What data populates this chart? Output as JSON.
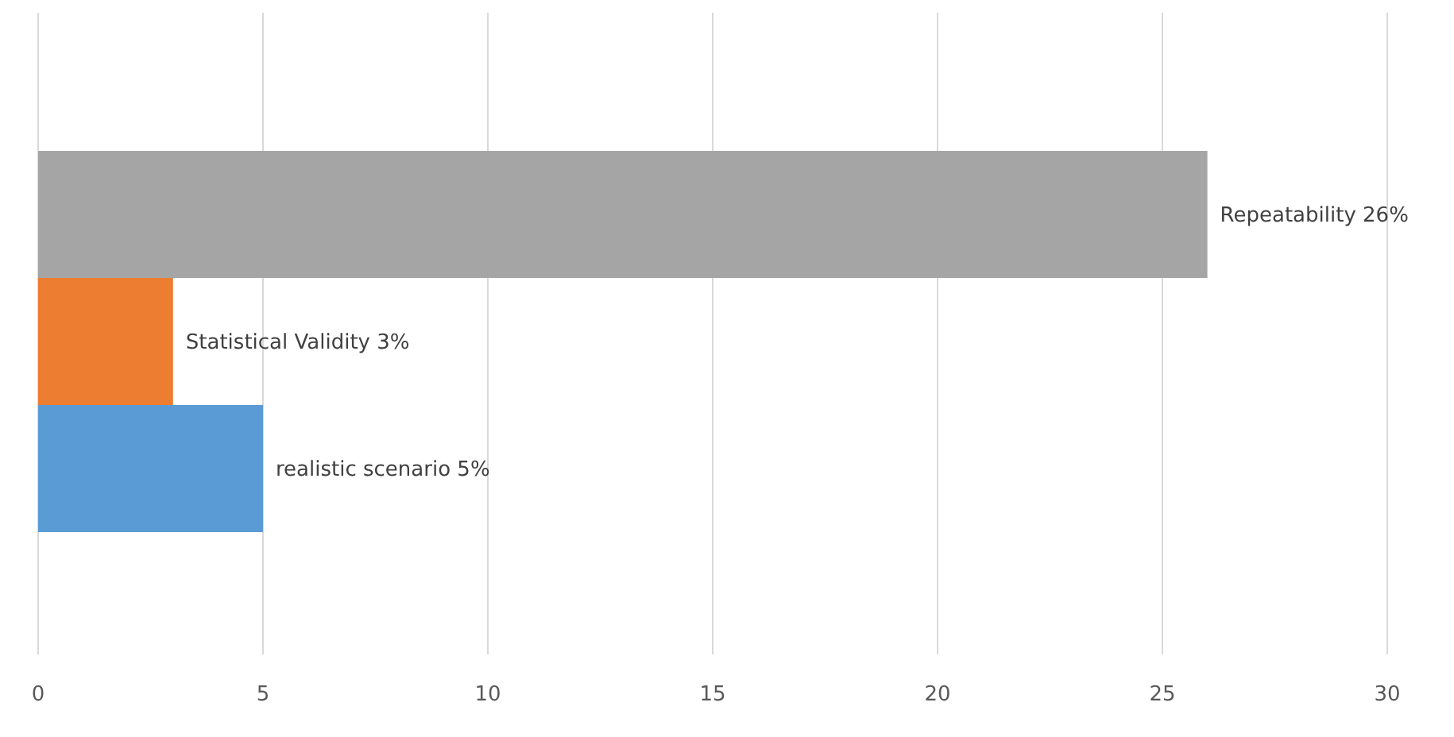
{
  "chart_data": {
    "type": "bar",
    "orientation": "horizontal",
    "categories": [
      null,
      null,
      null
    ],
    "values": [
      26,
      3,
      5
    ],
    "colors": [
      "#a5a5a5",
      "#ed7d31",
      "#5b9bd5"
    ],
    "value_labels": [
      "Repeatability 26%",
      "Statistical Validity 3%",
      "realistic scenario 5%"
    ],
    "xlim": [
      0,
      30
    ],
    "xticks": [
      0,
      5,
      10,
      15,
      20,
      25,
      30
    ],
    "grid": "x"
  }
}
